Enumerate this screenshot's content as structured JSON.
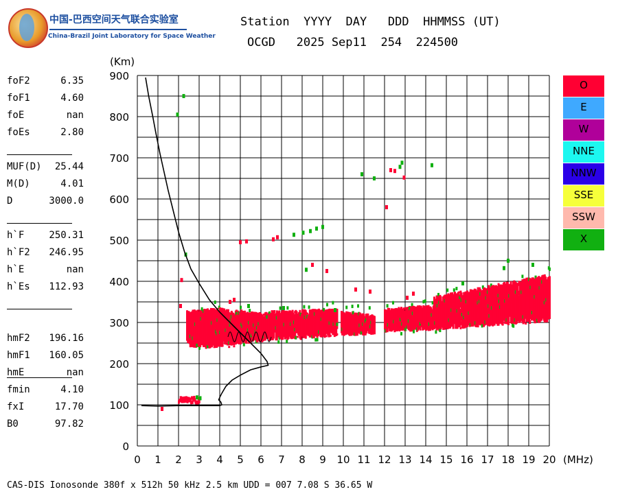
{
  "logo": {
    "cn": "中国-巴西空间天气联合实验室",
    "en": "China-Brazil Joint Laboratory for Space Weather"
  },
  "header": {
    "line1": "Station  YYYY  DAY   DDD  HHMMSS (UT)",
    "line2": "OCGD   2025 Sep11  254  224500"
  },
  "params": [
    {
      "label": "foF2",
      "value": "6.35"
    },
    {
      "label": "foF1",
      "value": "4.60"
    },
    {
      "label": "foE",
      "value": "nan"
    },
    {
      "label": "foEs",
      "value": "2.80"
    },
    {
      "label": "MUF(D)",
      "value": "25.44"
    },
    {
      "label": "M(D)",
      "value": "4.01"
    },
    {
      "label": "D",
      "value": "3000.0"
    },
    {
      "label": "h`F",
      "value": "250.31"
    },
    {
      "label": "h`F2",
      "value": "246.95"
    },
    {
      "label": "h`E",
      "value": "nan"
    },
    {
      "label": "h`Es",
      "value": "112.93"
    },
    {
      "label": "hmF2",
      "value": "196.16"
    },
    {
      "label": "hmF1",
      "value": "160.05"
    },
    {
      "label": "hmE",
      "value": "nan"
    },
    {
      "label": "fmin",
      "value": "4.10"
    },
    {
      "label": "fxI",
      "value": "17.70"
    },
    {
      "label": "B0",
      "value": "97.82"
    }
  ],
  "footer": "CAS-DIS Ionosonde 380f x 512h 50 kHz 2.5 km UDD = 007 7.08 S 36.65 W",
  "legend": [
    {
      "label": "O",
      "color": "#ff0033"
    },
    {
      "label": "E",
      "color": "#3fa9ff"
    },
    {
      "label": "W",
      "color": "#b0009a"
    },
    {
      "label": "NNE",
      "color": "#1cf7f0"
    },
    {
      "label": "NNW",
      "color": "#2a00e8"
    },
    {
      "label": "SSE",
      "color": "#f6ff3a"
    },
    {
      "label": "SSW",
      "color": "#ffb9ad"
    },
    {
      "label": "X",
      "color": "#11b011"
    }
  ],
  "chart_data": {
    "type": "scatter",
    "xlabel": "(MHz)",
    "ylabel": "(Km)",
    "xlim": [
      0,
      20
    ],
    "ylim": [
      0,
      900
    ],
    "x_ticks": [
      0,
      1,
      2,
      3,
      4,
      5,
      6,
      7,
      8,
      9,
      10,
      11,
      12,
      13,
      14,
      15,
      16,
      17,
      18,
      19,
      20
    ],
    "y_ticks": [
      0,
      100,
      200,
      300,
      400,
      500,
      600,
      700,
      800,
      900
    ],
    "grid": true,
    "o_trace_bands": [
      {
        "f0": 2.4,
        "f1": 3.4,
        "ylo0": 240,
        "ylo1": 235,
        "yhi0": 330,
        "yhi1": 335
      },
      {
        "f0": 3.4,
        "f1": 6.4,
        "ylo0": 235,
        "ylo1": 255,
        "yhi0": 340,
        "yhi1": 325
      },
      {
        "f0": 6.4,
        "f1": 9.7,
        "ylo0": 255,
        "ylo1": 265,
        "yhi0": 330,
        "yhi1": 335
      },
      {
        "f0": 9.9,
        "f1": 11.5,
        "ylo0": 265,
        "ylo1": 270,
        "yhi0": 330,
        "yhi1": 320
      },
      {
        "f0": 12.0,
        "f1": 14.4,
        "ylo0": 275,
        "ylo1": 280,
        "yhi0": 335,
        "yhi1": 345
      },
      {
        "f0": 14.4,
        "f1": 20.0,
        "ylo0": 280,
        "ylo1": 300,
        "yhi0": 365,
        "yhi1": 420
      }
    ],
    "es_trace": {
      "f0": 2.0,
      "f1": 3.0,
      "y0": 108,
      "y1": 122
    },
    "o_points": [
      [
        1.2,
        90
      ],
      [
        2.15,
        403
      ],
      [
        2.1,
        340
      ],
      [
        5.0,
        495
      ],
      [
        5.3,
        497
      ],
      [
        6.6,
        502
      ],
      [
        6.8,
        507
      ],
      [
        12.3,
        670
      ],
      [
        12.5,
        668
      ],
      [
        12.95,
        652
      ],
      [
        12.1,
        580
      ],
      [
        8.5,
        440
      ],
      [
        9.2,
        425
      ],
      [
        4.5,
        350
      ],
      [
        4.7,
        355
      ],
      [
        10.6,
        380
      ],
      [
        11.3,
        375
      ],
      [
        13.1,
        360
      ],
      [
        13.4,
        370
      ]
    ],
    "x_points": [
      [
        2.25,
        850
      ],
      [
        1.95,
        805
      ],
      [
        2.35,
        465
      ],
      [
        7.6,
        513
      ],
      [
        8.05,
        518
      ],
      [
        8.4,
        522
      ],
      [
        8.7,
        528
      ],
      [
        9.0,
        532
      ],
      [
        10.9,
        660
      ],
      [
        11.5,
        650
      ],
      [
        12.75,
        678
      ],
      [
        12.85,
        688
      ],
      [
        14.3,
        682
      ],
      [
        8.2,
        428
      ],
      [
        2.9,
        118
      ],
      [
        3.05,
        116
      ],
      [
        18.0,
        450
      ],
      [
        17.8,
        432
      ],
      [
        19.2,
        440
      ],
      [
        15.8,
        395
      ],
      [
        9.6,
        330
      ],
      [
        7.1,
        335
      ],
      [
        5.4,
        340
      ]
    ],
    "profile": [
      [
        0.4,
        895
      ],
      [
        0.55,
        850
      ],
      [
        0.75,
        800
      ],
      [
        0.9,
        760
      ],
      [
        1.1,
        710
      ],
      [
        1.3,
        665
      ],
      [
        1.5,
        620
      ],
      [
        1.75,
        570
      ],
      [
        2.0,
        520
      ],
      [
        2.3,
        470
      ],
      [
        2.6,
        430
      ],
      [
        3.0,
        395
      ],
      [
        3.5,
        355
      ],
      [
        4.0,
        325
      ],
      [
        4.5,
        300
      ],
      [
        5.0,
        275
      ],
      [
        5.5,
        250
      ],
      [
        6.0,
        225
      ],
      [
        6.3,
        205
      ],
      [
        6.35,
        196
      ],
      [
        6.0,
        192
      ],
      [
        5.5,
        185
      ],
      [
        5.0,
        172
      ],
      [
        4.6,
        160
      ],
      [
        4.3,
        145
      ],
      [
        4.1,
        128
      ],
      [
        4.0,
        118
      ],
      [
        3.95,
        112
      ],
      [
        4.05,
        107
      ],
      [
        4.1,
        100
      ],
      [
        4.0,
        98
      ],
      [
        3.0,
        98
      ],
      [
        2.0,
        98
      ],
      [
        1.0,
        97
      ],
      [
        0.2,
        98
      ]
    ],
    "es_profile": [
      [
        2.0,
        99
      ],
      [
        2.5,
        102
      ],
      [
        2.8,
        100
      ],
      [
        2.0,
        97
      ]
    ],
    "wave": {
      "f0": 4.4,
      "f1": 6.5,
      "y": 265,
      "amp": 12,
      "cycles": 5
    }
  }
}
